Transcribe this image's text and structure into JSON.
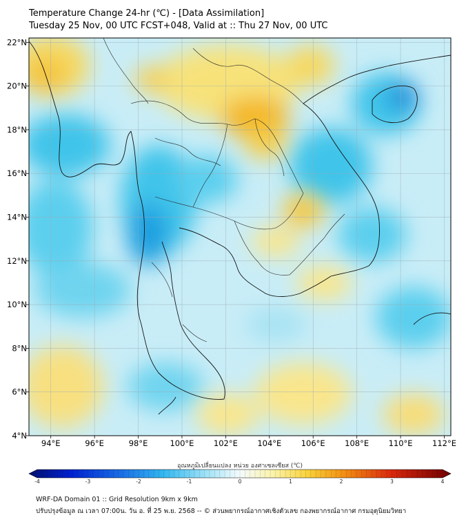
{
  "header": {
    "title_line1": "Temperature Change 24-hr (℃) - [Data Assimilation]",
    "title_line2": "Tuesday 25 Nov, 00 UTC FCST+048, Valid at :: Thu 27 Nov, 00 UTC"
  },
  "map": {
    "lon_labels": [
      "94°E",
      "96°E",
      "98°E",
      "100°E",
      "102°E",
      "104°E",
      "106°E",
      "108°E",
      "110°E",
      "112°E"
    ],
    "lat_labels": [
      "22°N",
      "20°N",
      "18°N",
      "16°N",
      "14°N",
      "12°N",
      "10°N",
      "8°N",
      "6°N",
      "4°N"
    ],
    "lon_range": [
      93,
      112.3
    ],
    "lat_range": [
      4,
      22.2
    ]
  },
  "colorbar": {
    "label": "อุณหภูมิเปลี่ยนแปลง หน่วย องศาเซลเซียส (℃)",
    "ticks": [
      "-4",
      "-3",
      "-2",
      "-1",
      "0",
      "1",
      "2",
      "3",
      "4"
    ],
    "range": [
      -4,
      4
    ]
  },
  "footer": {
    "line1": "WRF-DA Domain 01 :: Grid Resolution 9km x 9km",
    "line2": "ปรับปรุงข้อมูล ณ เวลา 07:00น. วัน อ. ที่ 25 พ.ย. 2568 -- © ส่วนพยากรณ์อากาศเชิงตัวเลข กองพยากรณ์อากาศ กรมอุตุนิยมวิทยา"
  },
  "colors": {
    "field_base": "#c9edf7",
    "cool": "#3fc4ea",
    "cool_deep": "#1e88d8",
    "warm": "#f7e27a",
    "warm_strong": "#f4b622"
  }
}
